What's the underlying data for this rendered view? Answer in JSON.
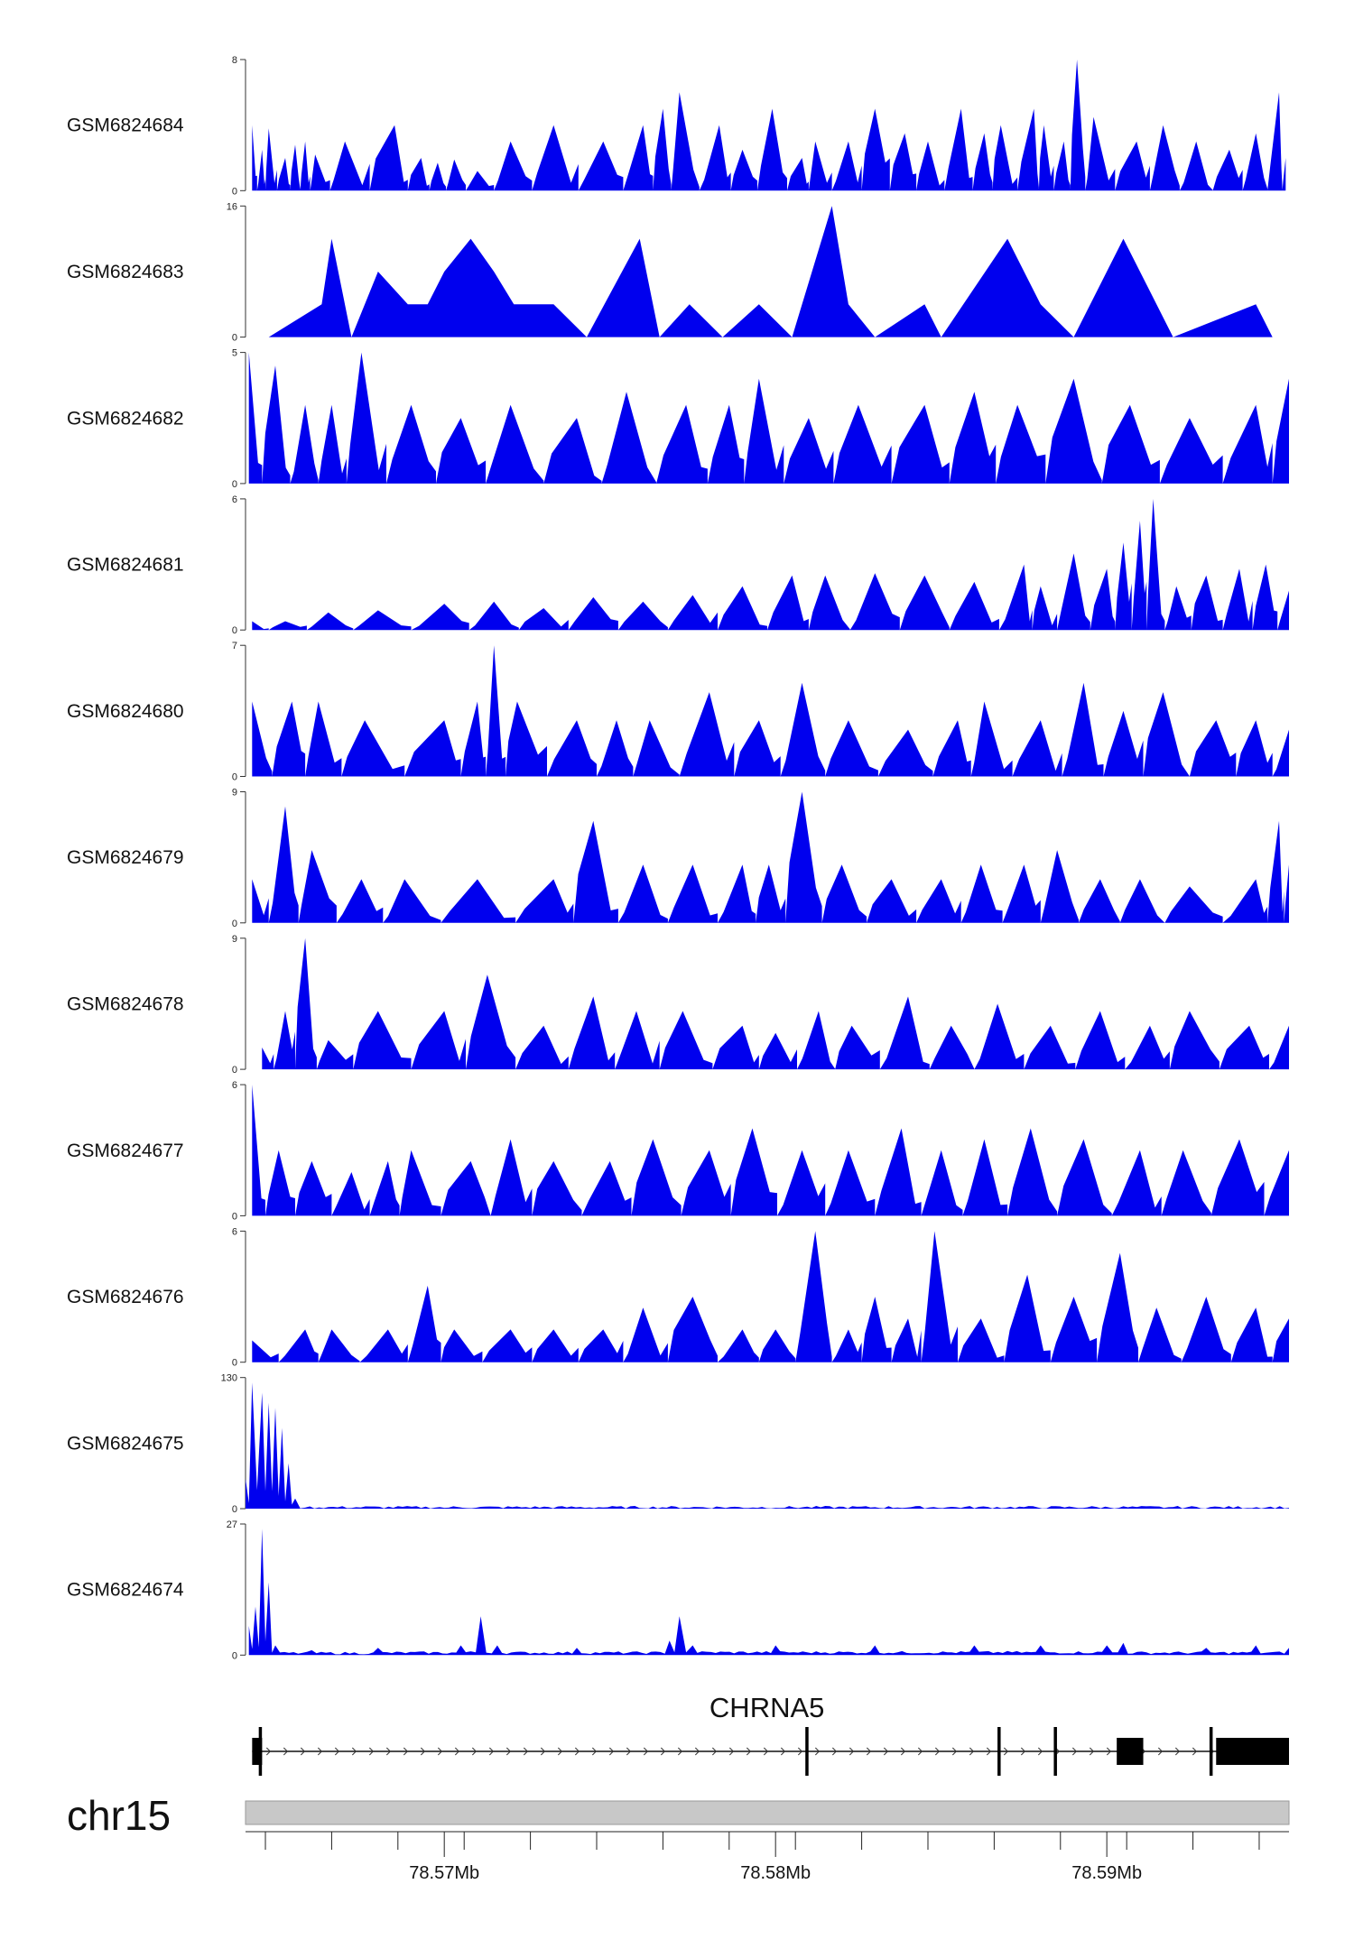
{
  "chart_data": {
    "type": "area",
    "fill_color": "#0000ee",
    "region": {
      "chromosome": "chr15",
      "start": 78.564,
      "end": 78.5955,
      "unit": "Mb"
    },
    "x_ticks": {
      "labeled": [
        "78.57Mb",
        "78.58Mb",
        "78.59Mb"
      ],
      "labeled_values": [
        78.57,
        78.58,
        78.59
      ],
      "minor_step": 0.002,
      "minor_start": 78.5646
    },
    "tracks": [
      {
        "name": "GSM6824684",
        "ymax": 8,
        "ymin": 0,
        "profile": "dense",
        "peaks": [
          [
            78.5642,
            4
          ],
          [
            78.5645,
            2.5
          ],
          [
            78.5647,
            3.8
          ],
          [
            78.5652,
            2
          ],
          [
            78.5655,
            2.8
          ],
          [
            78.5658,
            3
          ],
          [
            78.5661,
            2.2
          ],
          [
            78.567,
            3
          ],
          [
            78.5685,
            4
          ],
          [
            78.5693,
            2
          ],
          [
            78.5698,
            1.7
          ],
          [
            78.5703,
            1.9
          ],
          [
            78.571,
            1.2
          ],
          [
            78.572,
            3
          ],
          [
            78.5733,
            4
          ],
          [
            78.5748,
            3
          ],
          [
            78.576,
            4
          ],
          [
            78.5766,
            5
          ],
          [
            78.5771,
            6
          ],
          [
            78.5783,
            4
          ],
          [
            78.579,
            2.5
          ],
          [
            78.5799,
            5
          ],
          [
            78.5808,
            2
          ],
          [
            78.5812,
            3
          ],
          [
            78.5822,
            3
          ],
          [
            78.583,
            5
          ],
          [
            78.5839,
            3.5
          ],
          [
            78.5846,
            3
          ],
          [
            78.5856,
            5
          ],
          [
            78.5863,
            3.5
          ],
          [
            78.5868,
            4
          ],
          [
            78.5878,
            5
          ],
          [
            78.5881,
            4
          ],
          [
            78.5887,
            3
          ],
          [
            78.5891,
            8
          ],
          [
            78.5896,
            4.5
          ],
          [
            78.5909,
            3
          ],
          [
            78.5917,
            4
          ],
          [
            78.5927,
            3
          ],
          [
            78.5937,
            2.5
          ],
          [
            78.5945,
            3.5
          ],
          [
            78.5952,
            6
          ],
          [
            78.5954,
            2
          ]
        ]
      },
      {
        "name": "GSM6824683",
        "ymax": 16,
        "ymin": 0,
        "profile": "sparse",
        "peaks": [
          [
            78.5647,
            0
          ],
          [
            78.5663,
            4
          ],
          [
            78.5666,
            12
          ],
          [
            78.5672,
            0
          ],
          [
            78.568,
            8
          ],
          [
            78.5689,
            4
          ],
          [
            78.5695,
            4
          ],
          [
            78.57,
            8
          ],
          [
            78.5708,
            12
          ],
          [
            78.5715,
            8
          ],
          [
            78.5721,
            4
          ],
          [
            78.5733,
            4
          ],
          [
            78.5743,
            0
          ],
          [
            78.5759,
            12
          ],
          [
            78.5765,
            0
          ],
          [
            78.5774,
            4
          ],
          [
            78.5784,
            0
          ],
          [
            78.5795,
            4
          ],
          [
            78.5805,
            0
          ],
          [
            78.5817,
            16
          ],
          [
            78.5822,
            4
          ],
          [
            78.583,
            0
          ],
          [
            78.5845,
            4
          ],
          [
            78.585,
            0
          ],
          [
            78.587,
            12
          ],
          [
            78.588,
            4
          ],
          [
            78.589,
            0
          ],
          [
            78.5905,
            12
          ],
          [
            78.592,
            0
          ],
          [
            78.5945,
            4
          ],
          [
            78.595,
            0
          ]
        ]
      },
      {
        "name": "GSM6824682",
        "ymax": 5,
        "ymin": 0,
        "profile": "dense",
        "peaks": [
          [
            78.5641,
            5
          ],
          [
            78.5649,
            4.5
          ],
          [
            78.5658,
            3
          ],
          [
            78.5666,
            3
          ],
          [
            78.5675,
            5
          ],
          [
            78.569,
            3
          ],
          [
            78.5705,
            2.5
          ],
          [
            78.572,
            3
          ],
          [
            78.574,
            2.5
          ],
          [
            78.5755,
            3.5
          ],
          [
            78.5773,
            3
          ],
          [
            78.5786,
            3
          ],
          [
            78.5795,
            4
          ],
          [
            78.581,
            2.5
          ],
          [
            78.5825,
            3
          ],
          [
            78.5845,
            3
          ],
          [
            78.586,
            3.5
          ],
          [
            78.5873,
            3
          ],
          [
            78.589,
            4
          ],
          [
            78.5907,
            3
          ],
          [
            78.5925,
            2.5
          ],
          [
            78.5945,
            3
          ],
          [
            78.5955,
            4
          ]
        ]
      },
      {
        "name": "GSM6824681",
        "ymax": 6,
        "ymin": 0,
        "profile": "ramp",
        "peaks": [
          [
            78.5642,
            0.4
          ],
          [
            78.5652,
            0.4
          ],
          [
            78.5665,
            0.8
          ],
          [
            78.568,
            0.9
          ],
          [
            78.57,
            1.2
          ],
          [
            78.5715,
            1.3
          ],
          [
            78.573,
            1.0
          ],
          [
            78.5745,
            1.5
          ],
          [
            78.576,
            1.3
          ],
          [
            78.5775,
            1.6
          ],
          [
            78.579,
            2.0
          ],
          [
            78.5805,
            2.5
          ],
          [
            78.5815,
            2.5
          ],
          [
            78.583,
            2.6
          ],
          [
            78.5845,
            2.5
          ],
          [
            78.586,
            2.2
          ],
          [
            78.5875,
            3.0
          ],
          [
            78.588,
            2.0
          ],
          [
            78.589,
            3.5
          ],
          [
            78.59,
            2.8
          ],
          [
            78.5905,
            4.0
          ],
          [
            78.591,
            5.0
          ],
          [
            78.5914,
            6.0
          ],
          [
            78.5921,
            2.0
          ],
          [
            78.593,
            2.5
          ],
          [
            78.594,
            2.8
          ],
          [
            78.5948,
            3.0
          ],
          [
            78.5955,
            1.8
          ]
        ]
      },
      {
        "name": "GSM6824680",
        "ymax": 7,
        "ymin": 0,
        "profile": "dense",
        "peaks": [
          [
            78.5642,
            4
          ],
          [
            78.5654,
            4
          ],
          [
            78.5662,
            4
          ],
          [
            78.5676,
            3
          ],
          [
            78.57,
            3
          ],
          [
            78.571,
            4
          ],
          [
            78.5715,
            7
          ],
          [
            78.5722,
            4
          ],
          [
            78.574,
            3
          ],
          [
            78.5752,
            3
          ],
          [
            78.5762,
            3
          ],
          [
            78.578,
            4.5
          ],
          [
            78.5795,
            3
          ],
          [
            78.5808,
            5
          ],
          [
            78.5822,
            3
          ],
          [
            78.584,
            2.5
          ],
          [
            78.5855,
            3
          ],
          [
            78.5863,
            4
          ],
          [
            78.588,
            3
          ],
          [
            78.5893,
            5
          ],
          [
            78.5905,
            3.5
          ],
          [
            78.5917,
            4.5
          ],
          [
            78.5933,
            3
          ],
          [
            78.5945,
            3
          ],
          [
            78.5955,
            2.5
          ]
        ]
      },
      {
        "name": "GSM6824679",
        "ymax": 9,
        "ymin": 0,
        "profile": "dense",
        "peaks": [
          [
            78.5642,
            3
          ],
          [
            78.5652,
            8
          ],
          [
            78.566,
            5
          ],
          [
            78.5675,
            3
          ],
          [
            78.5688,
            3
          ],
          [
            78.571,
            3
          ],
          [
            78.5733,
            3
          ],
          [
            78.5745,
            7
          ],
          [
            78.576,
            4
          ],
          [
            78.5775,
            4
          ],
          [
            78.579,
            4
          ],
          [
            78.5798,
            4
          ],
          [
            78.5808,
            9
          ],
          [
            78.582,
            4
          ],
          [
            78.5835,
            3
          ],
          [
            78.585,
            3
          ],
          [
            78.5862,
            4
          ],
          [
            78.5875,
            4
          ],
          [
            78.5885,
            5
          ],
          [
            78.5898,
            3
          ],
          [
            78.591,
            3
          ],
          [
            78.5925,
            2.5
          ],
          [
            78.5945,
            3
          ],
          [
            78.5952,
            7
          ],
          [
            78.5955,
            4
          ]
        ]
      },
      {
        "name": "GSM6824678",
        "ymax": 9,
        "ymin": 0,
        "profile": "dense",
        "peaks": [
          [
            78.5645,
            1.5
          ],
          [
            78.5652,
            4
          ],
          [
            78.5658,
            9
          ],
          [
            78.5665,
            2
          ],
          [
            78.568,
            4
          ],
          [
            78.57,
            4
          ],
          [
            78.5713,
            6.5
          ],
          [
            78.573,
            3
          ],
          [
            78.5745,
            5
          ],
          [
            78.5758,
            4
          ],
          [
            78.5772,
            4
          ],
          [
            78.579,
            3
          ],
          [
            78.58,
            2.5
          ],
          [
            78.5813,
            4
          ],
          [
            78.5823,
            3
          ],
          [
            78.584,
            5
          ],
          [
            78.5853,
            3
          ],
          [
            78.5867,
            4.5
          ],
          [
            78.5883,
            3
          ],
          [
            78.5898,
            4
          ],
          [
            78.5913,
            3
          ],
          [
            78.5925,
            4
          ],
          [
            78.5943,
            3
          ],
          [
            78.5955,
            3
          ]
        ]
      },
      {
        "name": "GSM6824677",
        "ymax": 6,
        "ymin": 0,
        "profile": "dense",
        "peaks": [
          [
            78.5642,
            6
          ],
          [
            78.565,
            3
          ],
          [
            78.566,
            2.5
          ],
          [
            78.5672,
            2
          ],
          [
            78.5683,
            2.5
          ],
          [
            78.569,
            3
          ],
          [
            78.5708,
            2.5
          ],
          [
            78.572,
            3.5
          ],
          [
            78.5733,
            2.5
          ],
          [
            78.575,
            2.5
          ],
          [
            78.5763,
            3.5
          ],
          [
            78.578,
            3
          ],
          [
            78.5793,
            4
          ],
          [
            78.5808,
            3
          ],
          [
            78.5822,
            3
          ],
          [
            78.5838,
            4
          ],
          [
            78.585,
            3
          ],
          [
            78.5863,
            3.5
          ],
          [
            78.5877,
            4
          ],
          [
            78.5893,
            3.5
          ],
          [
            78.591,
            3
          ],
          [
            78.5923,
            3
          ],
          [
            78.594,
            3.5
          ],
          [
            78.5955,
            3
          ]
        ]
      },
      {
        "name": "GSM6824676",
        "ymax": 6,
        "ymin": 0,
        "profile": "dense",
        "peaks": [
          [
            78.5642,
            1
          ],
          [
            78.5658,
            1.5
          ],
          [
            78.5666,
            1.5
          ],
          [
            78.5683,
            1.5
          ],
          [
            78.5695,
            3.5
          ],
          [
            78.5703,
            1.5
          ],
          [
            78.572,
            1.5
          ],
          [
            78.5733,
            1.5
          ],
          [
            78.5748,
            1.5
          ],
          [
            78.576,
            2.5
          ],
          [
            78.5775,
            3
          ],
          [
            78.579,
            1.5
          ],
          [
            78.58,
            1.5
          ],
          [
            78.5812,
            6
          ],
          [
            78.5822,
            1.5
          ],
          [
            78.583,
            3
          ],
          [
            78.584,
            2
          ],
          [
            78.5848,
            6
          ],
          [
            78.5862,
            2
          ],
          [
            78.5876,
            4
          ],
          [
            78.589,
            3
          ],
          [
            78.5904,
            5
          ],
          [
            78.5915,
            2.5
          ],
          [
            78.593,
            3
          ],
          [
            78.5945,
            2.5
          ],
          [
            78.5955,
            2
          ]
        ]
      },
      {
        "name": "GSM6824675",
        "ymax": 130,
        "ymin": 0,
        "profile": "spike",
        "peaks": [
          [
            78.564,
            30
          ],
          [
            78.5642,
            125
          ],
          [
            78.5645,
            115
          ],
          [
            78.5647,
            105
          ],
          [
            78.5649,
            100
          ],
          [
            78.5651,
            80
          ],
          [
            78.5653,
            45
          ],
          [
            78.5655,
            10
          ],
          [
            78.5658,
            1
          ],
          [
            78.57,
            0.8
          ],
          [
            78.58,
            0.8
          ],
          [
            78.592,
            1.5
          ],
          [
            78.5955,
            0.8
          ]
        ]
      },
      {
        "name": "GSM6824674",
        "ymax": 27,
        "ymin": 0,
        "profile": "spike",
        "peaks": [
          [
            78.5641,
            6
          ],
          [
            78.5643,
            10
          ],
          [
            78.5645,
            26
          ],
          [
            78.5647,
            15
          ],
          [
            78.5649,
            2
          ],
          [
            78.566,
            1
          ],
          [
            78.568,
            1.5
          ],
          [
            78.5705,
            2
          ],
          [
            78.5711,
            8
          ],
          [
            78.5716,
            2
          ],
          [
            78.574,
            1.5
          ],
          [
            78.5768,
            3
          ],
          [
            78.5771,
            8
          ],
          [
            78.5775,
            2
          ],
          [
            78.58,
            2
          ],
          [
            78.583,
            2
          ],
          [
            78.586,
            2
          ],
          [
            78.588,
            2
          ],
          [
            78.59,
            2
          ],
          [
            78.5905,
            2.5
          ],
          [
            78.593,
            1.5
          ],
          [
            78.5945,
            2
          ],
          [
            78.5955,
            1.5
          ]
        ]
      }
    ],
    "gene": {
      "name": "CHRNA5",
      "strand": "+",
      "start": 78.5642,
      "end": 78.5955,
      "exons": [
        [
          78.5642,
          78.5645,
          "thick"
        ],
        [
          78.5644,
          78.5645,
          "bar"
        ],
        [
          78.5809,
          78.581,
          "bar"
        ],
        [
          78.5867,
          78.5868,
          "bar"
        ],
        [
          78.5884,
          78.5885,
          "bar"
        ],
        [
          78.5903,
          78.5911,
          "thick"
        ],
        [
          78.5931,
          78.5933,
          "bar"
        ],
        [
          78.5933,
          78.5955,
          "thick"
        ]
      ]
    },
    "chromosome_label": "chr15"
  }
}
